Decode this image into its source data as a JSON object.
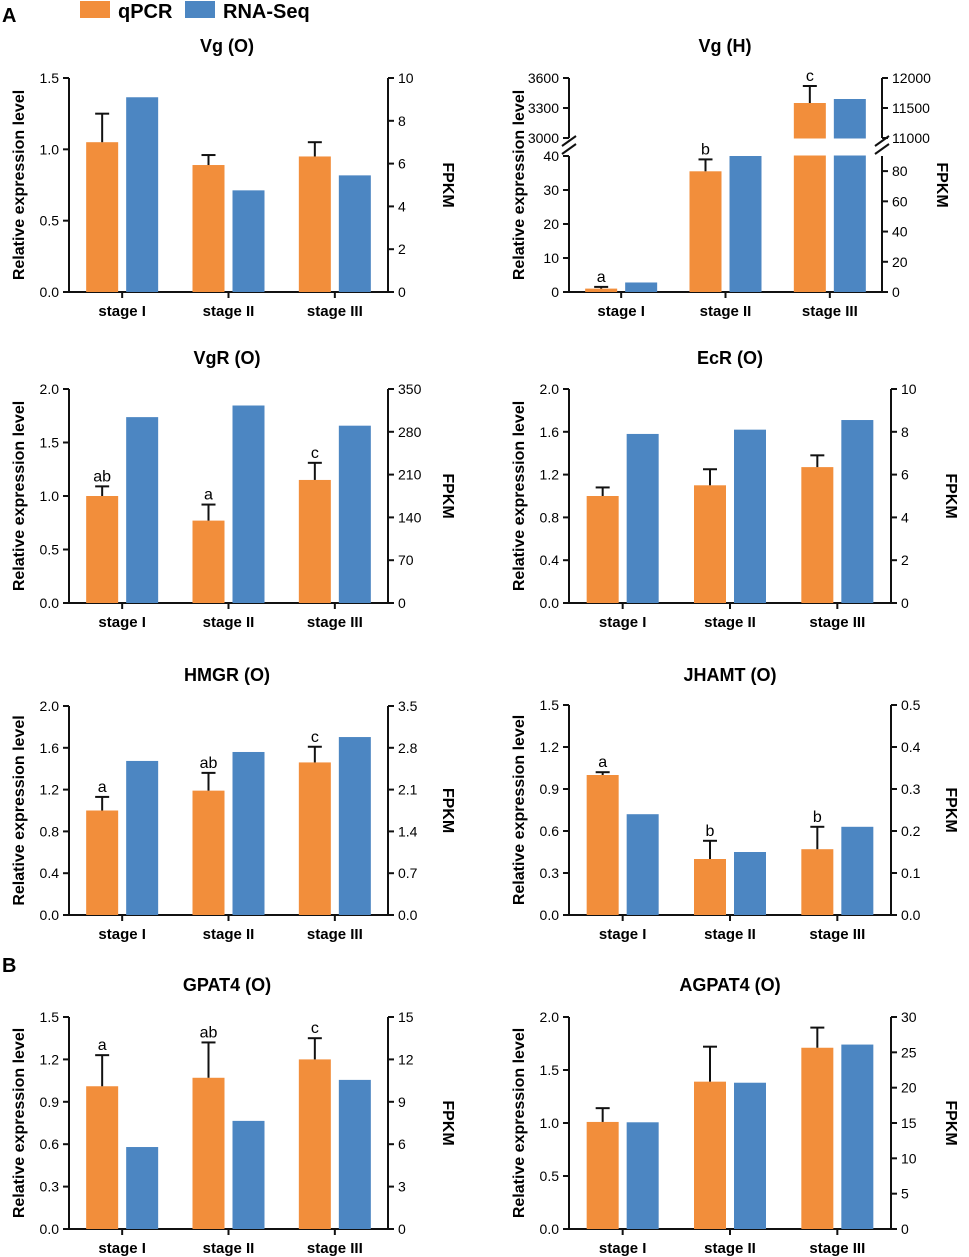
{
  "figure": {
    "panel_labels": [
      "A",
      "B"
    ],
    "legend": [
      {
        "label": "qPCR",
        "color": "#F28E3B"
      },
      {
        "label": "RNA-Seq",
        "color": "#4C86C2"
      }
    ],
    "colors": {
      "qpcr": "#F28E3B",
      "rnaseq": "#4C86C2",
      "axis": "#111111"
    }
  },
  "chart_data": [
    {
      "type": "bar",
      "title": "Vg (O)",
      "categories": [
        "stage I",
        "stage II",
        "stage III"
      ],
      "ylabel": "Relative expression level",
      "y2label": "FPKM",
      "ylim": [
        0,
        1.5
      ],
      "yticks": [
        "0.0",
        "0.5",
        "1.0",
        "1.5"
      ],
      "y2lim": [
        0,
        10
      ],
      "y2ticks": [
        "0",
        "2",
        "4",
        "6",
        "8",
        "10"
      ],
      "series": [
        {
          "name": "qPCR",
          "axis": "left",
          "values": [
            1.05,
            0.89,
            0.95
          ],
          "errors": [
            0.2,
            0.07,
            0.1
          ],
          "labels": [
            "",
            "",
            ""
          ]
        },
        {
          "name": "RNA-Seq",
          "axis": "right",
          "values": [
            9.1,
            4.75,
            5.45
          ]
        }
      ]
    },
    {
      "type": "bar",
      "title": "Vg (H)",
      "categories": [
        "stage I",
        "stage II",
        "stage III"
      ],
      "ylabel": "Relative expression level",
      "y2label": "FPKM",
      "broken_axis": true,
      "ylim_lower": [
        0,
        40
      ],
      "yticks_lower": [
        "0",
        "10",
        "20",
        "30",
        "40"
      ],
      "ylim_upper": [
        3000,
        3600
      ],
      "yticks_upper": [
        "3000",
        "3300",
        "3600"
      ],
      "y2lim_lower": [
        0,
        90
      ],
      "y2ticks_lower": [
        "0",
        "20",
        "40",
        "60",
        "80"
      ],
      "y2lim_upper": [
        11000,
        12000
      ],
      "y2ticks_upper": [
        "11000",
        "11500",
        "12000"
      ],
      "series": [
        {
          "name": "qPCR",
          "axis": "left",
          "values": [
            1,
            35.5,
            3350
          ],
          "errors": [
            0.5,
            3.5,
            170
          ],
          "labels": [
            "a",
            "b",
            "c"
          ]
        },
        {
          "name": "RNA-Seq",
          "axis": "right",
          "values": [
            6.3,
            90,
            11650
          ]
        }
      ]
    },
    {
      "type": "bar",
      "title": "VgR (O)",
      "categories": [
        "stage I",
        "stage II",
        "stage III"
      ],
      "ylabel": "Relative expression level",
      "y2label": "FPKM",
      "ylim": [
        0,
        2.0
      ],
      "yticks": [
        "0.0",
        "0.5",
        "1.0",
        "1.5",
        "2.0"
      ],
      "y2lim": [
        0,
        350
      ],
      "y2ticks": [
        "0",
        "70",
        "140",
        "210",
        "280",
        "350"
      ],
      "series": [
        {
          "name": "qPCR",
          "axis": "left",
          "values": [
            1.0,
            0.77,
            1.15
          ],
          "errors": [
            0.09,
            0.15,
            0.16
          ],
          "labels": [
            "ab",
            "a",
            "c"
          ]
        },
        {
          "name": "RNA-Seq",
          "axis": "right",
          "values": [
            304,
            323,
            290
          ]
        }
      ]
    },
    {
      "type": "bar",
      "title": "EcR (O)",
      "categories": [
        "stage I",
        "stage II",
        "stage III"
      ],
      "ylabel": "Relative expression level",
      "y2label": "FPKM",
      "ylim": [
        0,
        2.0
      ],
      "yticks": [
        "0.0",
        "0.4",
        "0.8",
        "1.2",
        "1.6",
        "2.0"
      ],
      "y2lim": [
        0,
        10
      ],
      "y2ticks": [
        "0",
        "2",
        "4",
        "6",
        "8",
        "10"
      ],
      "series": [
        {
          "name": "qPCR",
          "axis": "left",
          "values": [
            1.0,
            1.1,
            1.27
          ],
          "errors": [
            0.08,
            0.15,
            0.11
          ],
          "labels": [
            "",
            "",
            ""
          ]
        },
        {
          "name": "RNA-Seq",
          "axis": "right",
          "values": [
            7.9,
            8.1,
            8.55
          ]
        }
      ]
    },
    {
      "type": "bar",
      "title": "HMGR (O)",
      "categories": [
        "stage I",
        "stage II",
        "stage III"
      ],
      "ylabel": "Relative expression level",
      "y2label": "FPKM",
      "ylim": [
        0,
        2.0
      ],
      "yticks": [
        "0.0",
        "0.4",
        "0.8",
        "1.2",
        "1.6",
        "2.0"
      ],
      "y2lim": [
        0,
        3.5
      ],
      "y2ticks": [
        "0.0",
        "0.7",
        "1.4",
        "2.1",
        "2.8",
        "3.5"
      ],
      "series": [
        {
          "name": "qPCR",
          "axis": "left",
          "values": [
            1.0,
            1.19,
            1.46
          ],
          "errors": [
            0.13,
            0.17,
            0.15
          ],
          "labels": [
            "a",
            "ab",
            "c"
          ]
        },
        {
          "name": "RNA-Seq",
          "axis": "right",
          "values": [
            2.58,
            2.73,
            2.98
          ]
        }
      ]
    },
    {
      "type": "bar",
      "title": "JHAMT (O)",
      "categories": [
        "stage I",
        "stage II",
        "stage III"
      ],
      "ylabel": "Relative expression level",
      "y2label": "FPKM",
      "ylim": [
        0,
        1.5
      ],
      "yticks": [
        "0.0",
        "0.3",
        "0.6",
        "0.9",
        "1.2",
        "1.5"
      ],
      "y2lim": [
        0,
        0.5
      ],
      "y2ticks": [
        "0.0",
        "0.1",
        "0.2",
        "0.3",
        "0.4",
        "0.5"
      ],
      "series": [
        {
          "name": "qPCR",
          "axis": "left",
          "values": [
            1.0,
            0.4,
            0.47
          ],
          "errors": [
            0.02,
            0.13,
            0.16
          ],
          "labels": [
            "a",
            "b",
            "b"
          ]
        },
        {
          "name": "RNA-Seq",
          "axis": "right",
          "values": [
            0.24,
            0.15,
            0.21
          ]
        }
      ]
    },
    {
      "type": "bar",
      "title": "GPAT4 (O)",
      "categories": [
        "stage I",
        "stage II",
        "stage III"
      ],
      "ylabel": "Relative expression level",
      "y2label": "FPKM",
      "ylim": [
        0,
        1.5
      ],
      "yticks": [
        "0.0",
        "0.3",
        "0.6",
        "0.9",
        "1.2",
        "1.5"
      ],
      "y2lim": [
        0,
        15
      ],
      "y2ticks": [
        "0",
        "3",
        "6",
        "9",
        "12",
        "15"
      ],
      "series": [
        {
          "name": "qPCR",
          "axis": "left",
          "values": [
            1.01,
            1.07,
            1.2
          ],
          "errors": [
            0.22,
            0.25,
            0.15
          ],
          "labels": [
            "a",
            "ab",
            "c"
          ]
        },
        {
          "name": "RNA-Seq",
          "axis": "right",
          "values": [
            5.8,
            7.65,
            10.55
          ]
        }
      ]
    },
    {
      "type": "bar",
      "title": "AGPAT4 (O)",
      "categories": [
        "stage I",
        "stage II",
        "stage III"
      ],
      "ylabel": "Relative expression level",
      "y2label": "FPKM",
      "ylim": [
        0,
        2.0
      ],
      "yticks": [
        "0.0",
        "0.5",
        "1.0",
        "1.5",
        "2.0"
      ],
      "y2lim": [
        0,
        30
      ],
      "y2ticks": [
        "0",
        "5",
        "10",
        "15",
        "20",
        "25",
        "30"
      ],
      "series": [
        {
          "name": "qPCR",
          "axis": "left",
          "values": [
            1.01,
            1.39,
            1.71
          ],
          "errors": [
            0.13,
            0.33,
            0.19
          ],
          "labels": [
            "",
            "",
            ""
          ]
        },
        {
          "name": "RNA-Seq",
          "axis": "right",
          "values": [
            15.1,
            20.7,
            26.1
          ]
        }
      ]
    }
  ]
}
